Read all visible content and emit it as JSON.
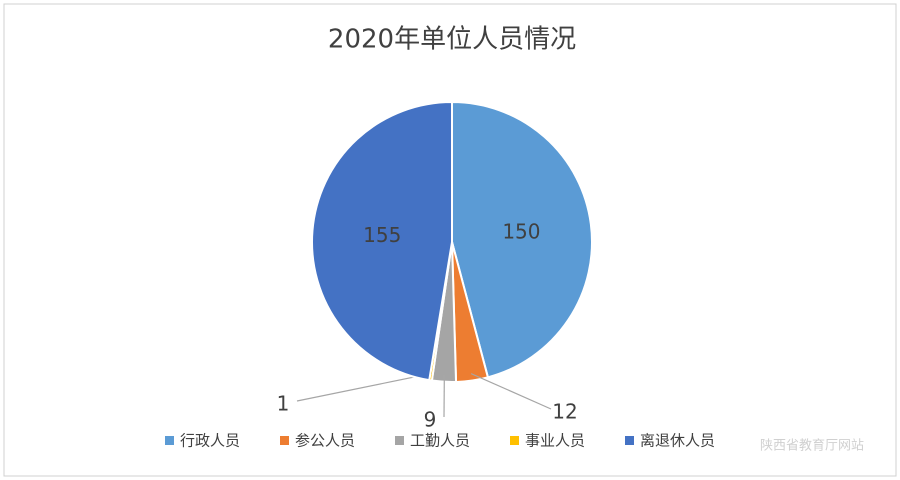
{
  "chart_data": {
    "type": "pie",
    "title": "2020年单位人员情况",
    "categories": [
      "行政人员",
      "参公人员",
      "工勤人员",
      "事业人员",
      "离退休人员"
    ],
    "values": [
      150,
      12,
      9,
      1,
      155
    ],
    "colors": [
      "#5b9bd5",
      "#ed7d31",
      "#a5a5a5",
      "#ffc000",
      "#4472c4"
    ],
    "legend": "bottom",
    "watermark": "陕西省教育厅网站"
  }
}
